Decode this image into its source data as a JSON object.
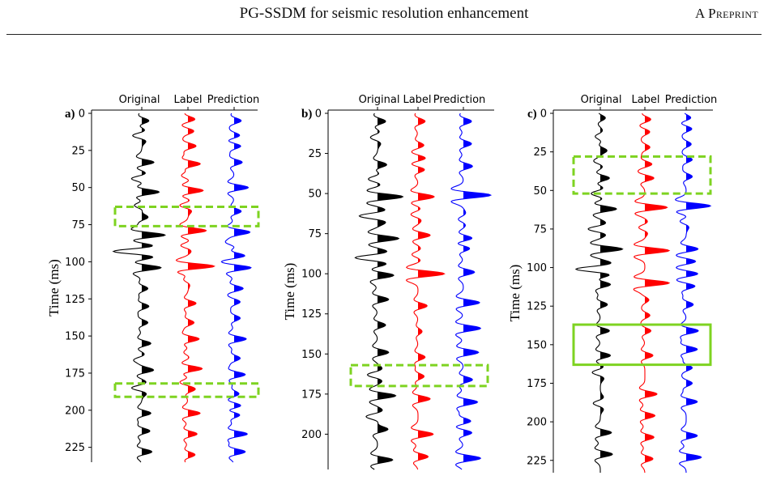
{
  "header": {
    "title": "PG-SSDM for seismic resolution enhancement",
    "right": "A Preprint"
  },
  "colors": {
    "original": "#000000",
    "label": "#ff0000",
    "prediction": "#0000ff",
    "highlight": "#7ed321"
  },
  "chart_data": [
    {
      "type": "line",
      "panel": "a)",
      "ylabel": "Time (ms)",
      "columns": [
        "Original",
        "Label",
        "Prediction"
      ],
      "yticks": [
        0,
        25,
        50,
        75,
        100,
        125,
        150,
        175,
        200,
        225
      ],
      "ylim": [
        0,
        235
      ],
      "y_inverted": true,
      "highlights": [
        {
          "t0": 63,
          "t1": 76,
          "style": "dashed",
          "span": "all"
        },
        {
          "t0": 182,
          "t1": 191,
          "style": "dashed",
          "span": "all"
        }
      ],
      "series": [
        {
          "events": [
            [
              5,
              0.35
            ],
            [
              15,
              -0.45
            ],
            [
              33,
              0.6
            ],
            [
              44,
              -0.5
            ],
            [
              53,
              0.85
            ],
            [
              62,
              -0.35
            ],
            [
              70,
              0.3
            ],
            [
              82,
              1.15
            ],
            [
              93,
              -1.4
            ],
            [
              104,
              0.95
            ],
            [
              118,
              0.3
            ],
            [
              130,
              0.35
            ],
            [
              141,
              0.3
            ],
            [
              155,
              0.45
            ],
            [
              166,
              -0.35
            ],
            [
              173,
              0.55
            ],
            [
              185,
              -0.5
            ],
            [
              202,
              0.45
            ],
            [
              214,
              0.4
            ],
            [
              228,
              0.5
            ]
          ]
        },
        {
          "events": [
            [
              4,
              0.35
            ],
            [
              12,
              0.3
            ],
            [
              22,
              0.4
            ],
            [
              34,
              0.6
            ],
            [
              42,
              -0.3
            ],
            [
              52,
              0.75
            ],
            [
              62,
              -0.4
            ],
            [
              79,
              0.9
            ],
            [
              89,
              -0.35
            ],
            [
              103,
              1.3
            ],
            [
              112,
              -0.2
            ],
            [
              128,
              0.4
            ],
            [
              141,
              0.3
            ],
            [
              152,
              0.55
            ],
            [
              161,
              -0.2
            ],
            [
              172,
              0.7
            ],
            [
              181,
              -0.3
            ],
            [
              186,
              0.25
            ],
            [
              202,
              0.6
            ],
            [
              216,
              0.45
            ],
            [
              230,
              0.35
            ]
          ]
        },
        {
          "events": [
            [
              5,
              0.35
            ],
            [
              15,
              0.3
            ],
            [
              22,
              0.35
            ],
            [
              33,
              0.4
            ],
            [
              50,
              0.7
            ],
            [
              66,
              0.35
            ],
            [
              80,
              0.75
            ],
            [
              87,
              -0.35
            ],
            [
              96,
              0.55
            ],
            [
              104,
              0.85
            ],
            [
              118,
              0.45
            ],
            [
              127,
              0.3
            ],
            [
              138,
              0.3
            ],
            [
              152,
              0.6
            ],
            [
              165,
              0.3
            ],
            [
              176,
              0.55
            ],
            [
              189,
              0.25
            ],
            [
              197,
              0.4
            ],
            [
              203,
              0.35
            ],
            [
              216,
              0.65
            ],
            [
              228,
              0.55
            ]
          ]
        }
      ]
    },
    {
      "type": "line",
      "panel": "b)",
      "ylabel": "Time (ms)",
      "columns": [
        "Original",
        "Label",
        "Prediction"
      ],
      "yticks": [
        0,
        25,
        50,
        75,
        100,
        125,
        150,
        175,
        200
      ],
      "ylim": [
        0,
        222
      ],
      "y_inverted": true,
      "highlights": [
        {
          "t0": 157,
          "t1": 170,
          "style": "dashed",
          "span": "all"
        }
      ],
      "series": [
        {
          "events": [
            [
              5,
              0.4
            ],
            [
              15,
              -0.35
            ],
            [
              32,
              0.45
            ],
            [
              41,
              -0.45
            ],
            [
              52,
              1.25
            ],
            [
              64,
              -0.9
            ],
            [
              78,
              1.05
            ],
            [
              90,
              -1.1
            ],
            [
              101,
              0.8
            ],
            [
              116,
              0.55
            ],
            [
              132,
              0.4
            ],
            [
              149,
              0.55
            ],
            [
              163,
              -0.5
            ],
            [
              176,
              0.9
            ],
            [
              189,
              -0.55
            ],
            [
              197,
              0.5
            ],
            [
              216,
              0.75
            ]
          ]
        },
        {
          "events": [
            [
              5,
              0.35
            ],
            [
              20,
              0.3
            ],
            [
              28,
              0.4
            ],
            [
              35,
              0.35
            ],
            [
              52,
              0.8
            ],
            [
              63,
              -0.35
            ],
            [
              76,
              0.6
            ],
            [
              88,
              -0.3
            ],
            [
              100,
              1.3
            ],
            [
              120,
              0.45
            ],
            [
              136,
              0.2
            ],
            [
              152,
              0.35
            ],
            [
              164,
              0.3
            ],
            [
              178,
              0.6
            ],
            [
              200,
              0.75
            ],
            [
              214,
              0.5
            ]
          ]
        },
        {
          "events": [
            [
              5,
              0.4
            ],
            [
              19,
              0.4
            ],
            [
              33,
              0.45
            ],
            [
              51,
              1.35
            ],
            [
              66,
              -0.25
            ],
            [
              78,
              0.5
            ],
            [
              84,
              0.4
            ],
            [
              99,
              0.55
            ],
            [
              118,
              0.8
            ],
            [
              134,
              0.85
            ],
            [
              149,
              0.75
            ],
            [
              166,
              0.45
            ],
            [
              180,
              0.7
            ],
            [
              192,
              0.4
            ],
            [
              199,
              0.45
            ],
            [
              215,
              0.85
            ]
          ]
        }
      ]
    },
    {
      "type": "line",
      "panel": "c)",
      "ylabel": "Time (ms)",
      "columns": [
        "Original",
        "Label",
        "Prediction"
      ],
      "yticks": [
        0,
        25,
        50,
        75,
        100,
        125,
        150,
        175,
        200,
        225
      ],
      "ylim": [
        0,
        233
      ],
      "y_inverted": true,
      "highlights": [
        {
          "t0": 28,
          "t1": 52,
          "style": "dashed",
          "span": "all"
        },
        {
          "t0": 137,
          "t1": 163,
          "style": "solid",
          "span": "all"
        }
      ],
      "series": [
        {
          "events": [
            [
              3,
              0.25
            ],
            [
              15,
              -0.25
            ],
            [
              24,
              0.3
            ],
            [
              31,
              -0.3
            ],
            [
              42,
              0.45
            ],
            [
              52,
              -0.45
            ],
            [
              62,
              0.8
            ],
            [
              75,
              -0.6
            ],
            [
              88,
              1.1
            ],
            [
              101,
              -1.2
            ],
            [
              111,
              0.5
            ],
            [
              124,
              0.35
            ],
            [
              141,
              0.45
            ],
            [
              157,
              0.5
            ],
            [
              168,
              -0.4
            ],
            [
              188,
              -0.35
            ],
            [
              207,
              0.55
            ],
            [
              221,
              0.6
            ]
          ]
        },
        {
          "events": [
            [
              4,
              0.3
            ],
            [
              12,
              0.25
            ],
            [
              22,
              0.25
            ],
            [
              33,
              0.35
            ],
            [
              42,
              0.45
            ],
            [
              61,
              1.1
            ],
            [
              74,
              -0.3
            ],
            [
              89,
              1.2
            ],
            [
              110,
              1.2
            ],
            [
              121,
              0.2
            ],
            [
              131,
              0.25
            ],
            [
              141,
              0.3
            ],
            [
              157,
              0.4
            ],
            [
              182,
              0.6
            ],
            [
              196,
              0.5
            ],
            [
              210,
              0.45
            ],
            [
              224,
              0.4
            ]
          ]
        },
        {
          "events": [
            [
              3,
              0.25
            ],
            [
              10,
              0.3
            ],
            [
              20,
              0.25
            ],
            [
              30,
              0.3
            ],
            [
              41,
              0.3
            ],
            [
              60,
              1.2
            ],
            [
              70,
              -0.3
            ],
            [
              88,
              0.6
            ],
            [
              96,
              0.5
            ],
            [
              104,
              0.6
            ],
            [
              112,
              0.45
            ],
            [
              124,
              0.35
            ],
            [
              141,
              0.6
            ],
            [
              153,
              0.55
            ],
            [
              165,
              0.3
            ],
            [
              175,
              0.3
            ],
            [
              187,
              0.55
            ],
            [
              209,
              0.55
            ],
            [
              223,
              0.75
            ]
          ]
        }
      ]
    }
  ]
}
